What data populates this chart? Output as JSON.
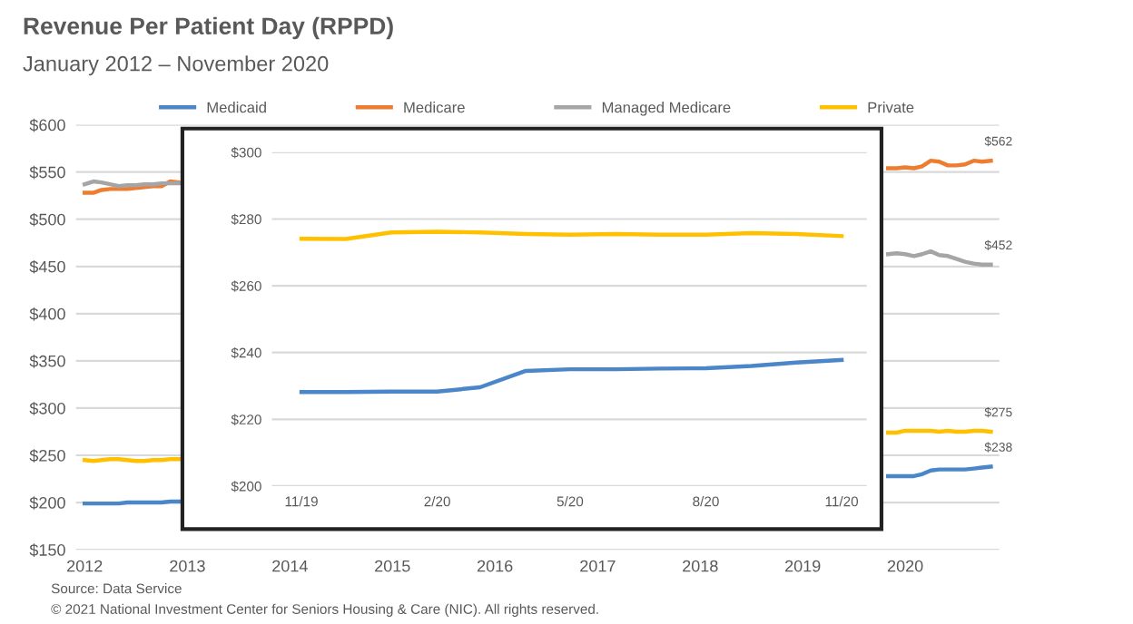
{
  "chart_data": [
    {
      "type": "line",
      "title": "Revenue Per Patient Day (RPPD)",
      "subtitle": "January 2012 – November 2020",
      "annotations": [
        {
          "text": "$562",
          "x": "2020-11",
          "y": 562
        },
        {
          "text": "$452",
          "x": "2020-11",
          "y": 452
        },
        {
          "text": "$275",
          "x": "2020-11",
          "y": 275
        },
        {
          "text": "$238",
          "x": "2020-11",
          "y": 238
        },
        "Source: Data Service",
        "© 2021 National Investment Center for Seniors Housing & Care (NIC). All rights reserved."
      ],
      "x": [
        "2012-01",
        "2012-02",
        "2012-03",
        "2012-04",
        "2012-05",
        "2012-06",
        "2012-07",
        "2012-08",
        "2012-09",
        "2012-10",
        "2012-11",
        "2012-12",
        "2016-06",
        "2019-11",
        "2019-12",
        "2020-01",
        "2020-02",
        "2020-03",
        "2020-04",
        "2020-05",
        "2020-06",
        "2020-07",
        "2020-08",
        "2020-09",
        "2020-10",
        "2020-11"
      ],
      "series": [
        {
          "name": "Medicaid",
          "color": "#4a86c8",
          "values": [
            199,
            199,
            199,
            199,
            199,
            200,
            200,
            200,
            200,
            200,
            201,
            201,
            null,
            228,
            228,
            228,
            228,
            230,
            234,
            235,
            235,
            235,
            235,
            236,
            237,
            238
          ]
        },
        {
          "name": "Medicare",
          "color": "#ed7d31",
          "values": [
            528,
            528,
            531,
            532,
            532,
            532,
            533,
            534,
            535,
            535,
            540,
            539,
            null,
            554,
            554,
            555,
            554,
            556,
            562,
            561,
            557,
            557,
            558,
            562,
            561,
            562
          ]
        },
        {
          "name": "Managed Medicare",
          "color": "#a5a5a5",
          "values": [
            537,
            540,
            539,
            537,
            535,
            536,
            536,
            537,
            537,
            538,
            538,
            538,
            null,
            463,
            464,
            463,
            461,
            463,
            466,
            462,
            461,
            458,
            455,
            453,
            452,
            452
          ]
        },
        {
          "name": "Private",
          "color": "#ffc000",
          "values": [
            245,
            244,
            245,
            246,
            246,
            245,
            244,
            244,
            245,
            245,
            246,
            246,
            null,
            274,
            274,
            276,
            276,
            276,
            276,
            275,
            276,
            275,
            275,
            276,
            276,
            275
          ]
        }
      ],
      "xlim": [
        "2011-12",
        "2020-12"
      ],
      "xticks": [
        "2012",
        "2013",
        "2014",
        "2015",
        "2016",
        "2017",
        "2018",
        "2019",
        "2020"
      ],
      "ylim": [
        150,
        600
      ],
      "yticks": [
        {
          "value": 150,
          "label": "$150"
        },
        {
          "value": 200,
          "label": "$200"
        },
        {
          "value": 250,
          "label": "$250"
        },
        {
          "value": 300,
          "label": "$300"
        },
        {
          "value": 350,
          "label": "$350"
        },
        {
          "value": 400,
          "label": "$400"
        },
        {
          "value": 450,
          "label": "$450"
        },
        {
          "value": 500,
          "label": "$500"
        },
        {
          "value": 550,
          "label": "$550"
        },
        {
          "value": 600,
          "label": "$600"
        }
      ],
      "grid": "y",
      "legend": "top"
    },
    {
      "type": "line",
      "x": [
        "2019-11",
        "2019-12",
        "2020-01",
        "2020-02",
        "2020-03",
        "2020-04",
        "2020-05",
        "2020-06",
        "2020-07",
        "2020-08",
        "2020-09",
        "2020-10",
        "2020-11"
      ],
      "series": [
        {
          "color": "#4a86c8",
          "values": [
            228.2,
            228.2,
            228.3,
            228.3,
            229.6,
            234.5,
            235,
            235,
            235.2,
            235.3,
            236,
            237,
            237.8
          ]
        },
        {
          "color": "#ffc000",
          "values": [
            274.1,
            274,
            276,
            276.2,
            276,
            275.5,
            275.3,
            275.5,
            275.3,
            275.3,
            275.8,
            275.5,
            274.9
          ]
        }
      ],
      "xlim": [
        "2019-10-12",
        "2020-11-18"
      ],
      "xticks": [
        {
          "value": "2019-11",
          "label": "11/19"
        },
        {
          "value": "2020-02",
          "label": "2/20"
        },
        {
          "value": "2020-05",
          "label": "5/20"
        },
        {
          "value": "2020-08",
          "label": "8/20"
        },
        {
          "value": "2020-11",
          "label": "11/20"
        }
      ],
      "ylim": [
        200,
        300
      ],
      "yticks": [
        {
          "value": 200,
          "label": "$200"
        },
        {
          "value": 220,
          "label": "$220"
        },
        {
          "value": 240,
          "label": "$240"
        },
        {
          "value": 260,
          "label": "$260"
        },
        {
          "value": 280,
          "label": "$280"
        },
        {
          "value": 300,
          "label": "$300"
        }
      ],
      "grid": "y"
    }
  ]
}
